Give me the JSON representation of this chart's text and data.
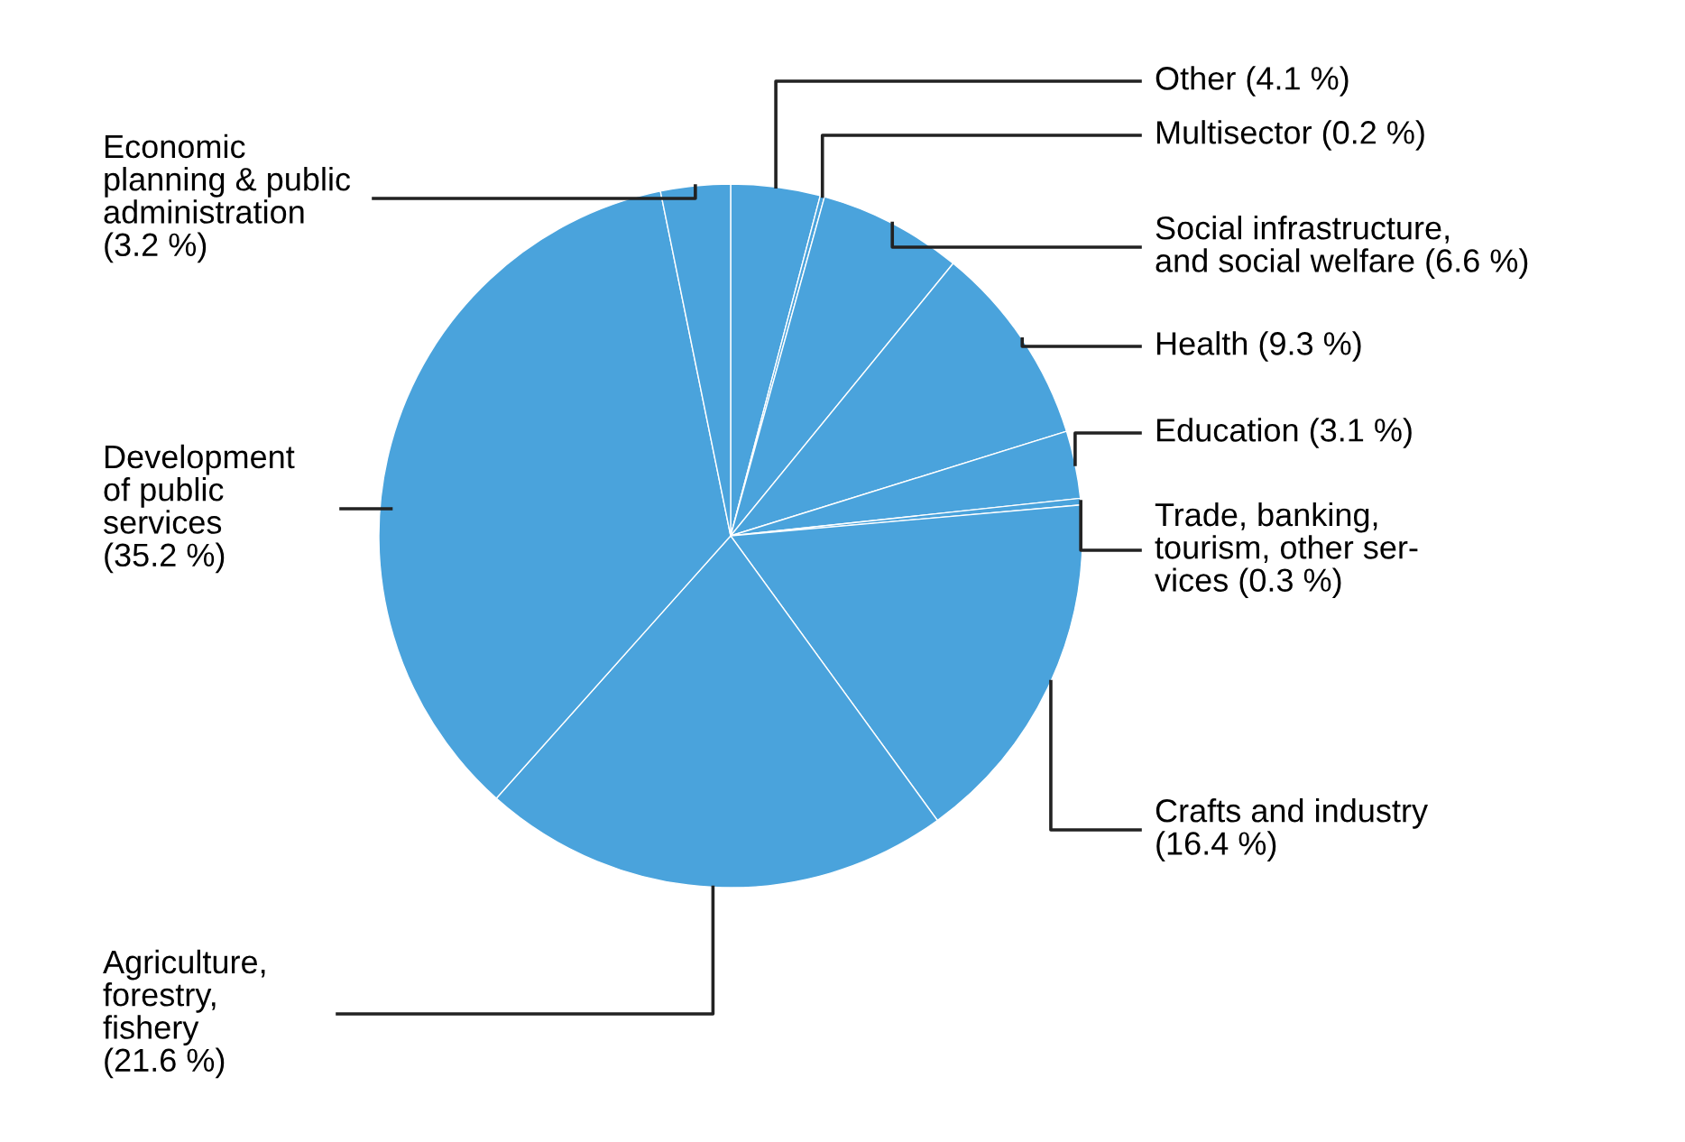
{
  "chart_data": {
    "type": "pie",
    "categories": [
      "Other (4.1 %)",
      "Multisector (0.2 %)",
      "Social infrastructure,\nand social welfare (6.6 %)",
      "Health (9.3 %)",
      "Education (3.1 %)",
      "Trade, banking,\ntourism, other ser-\nvices (0.3 %)",
      "Crafts and industry\n(16.4 %)",
      "Agriculture,\nforestry,\nfishery\n(21.6 %)",
      "Development\nof public\nservices\n(35.2 %)",
      "Economic\nplanning & public\nadministration\n(3.2 %)"
    ],
    "values": [
      4.1,
      0.2,
      6.6,
      9.3,
      3.1,
      0.3,
      16.4,
      21.6,
      35.2,
      3.2
    ],
    "colors": [
      "#4aa3dc",
      "#4aa3dc",
      "#4aa3dc",
      "#4aa3dc",
      "#4aa3dc",
      "#4aa3dc",
      "#4aa3dc",
      "#4aa3dc",
      "#4aa3dc",
      "#4aa3dc"
    ]
  }
}
